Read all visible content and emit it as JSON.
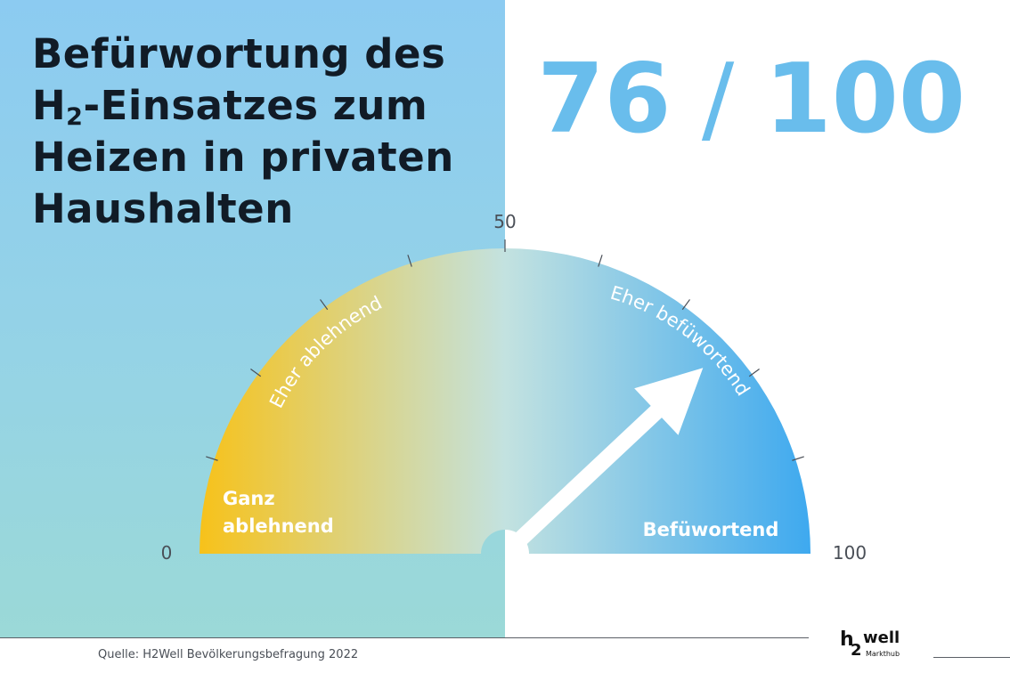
{
  "title_lines": [
    "Befürwortung des",
    "H",
    "2",
    "-Einsatzes zum",
    "Heizen in privaten",
    "Haushalten"
  ],
  "score": {
    "value": "76",
    "separator": " / ",
    "max": "100"
  },
  "chart_data": {
    "type": "gauge",
    "min": 0,
    "max": 100,
    "value": 76,
    "axis_labels": {
      "min": "0",
      "mid": "50",
      "max": "100"
    },
    "bands": [
      {
        "label_lines": [
          "Ganz",
          "ablehnend"
        ],
        "from": 0,
        "to": 25
      },
      {
        "label": "Eher ablehnend",
        "from": 25,
        "to": 50
      },
      {
        "label": "Eher befüwortend",
        "from": 50,
        "to": 75
      },
      {
        "label": "Befüwortend",
        "from": 75,
        "to": 100
      }
    ],
    "colors": {
      "low": "#f7c21a",
      "mid": "#c3e2e0",
      "high": "#3ea9ef",
      "needle": "#ffffff",
      "tick": "#4a4f57"
    }
  },
  "footer": {
    "source": "Quelle: H2Well Bevölkerungsbefragung 2022",
    "logo": {
      "h": "h",
      "two": "2",
      "well": "well",
      "sub": "Markthub"
    }
  }
}
